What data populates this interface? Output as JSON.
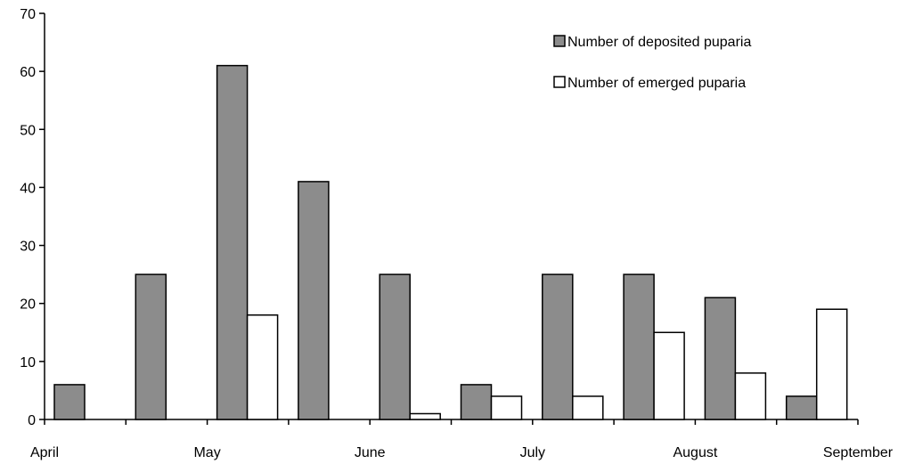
{
  "chart_data": {
    "type": "bar",
    "categories": [
      "1",
      "2",
      "3",
      "4",
      "5",
      "6",
      "7",
      "8",
      "9",
      "10"
    ],
    "month_labels": [
      "April",
      "May",
      "June",
      "July",
      "August",
      "September"
    ],
    "series": [
      {
        "name": "Number of deposited puparia",
        "color": "#8c8c8c",
        "values": [
          6,
          25,
          61,
          41,
          25,
          6,
          25,
          25,
          21,
          4
        ]
      },
      {
        "name": "Number of emerged puparia",
        "color": "#ffffff",
        "values": [
          0,
          0,
          18,
          0,
          1,
          4,
          4,
          15,
          8,
          19
        ]
      }
    ],
    "y_ticks": [
      "0",
      "10",
      "20",
      "30",
      "40",
      "50",
      "60",
      "70"
    ],
    "ylim": [
      0,
      70
    ],
    "legend_position": "top-right",
    "grid": false
  }
}
